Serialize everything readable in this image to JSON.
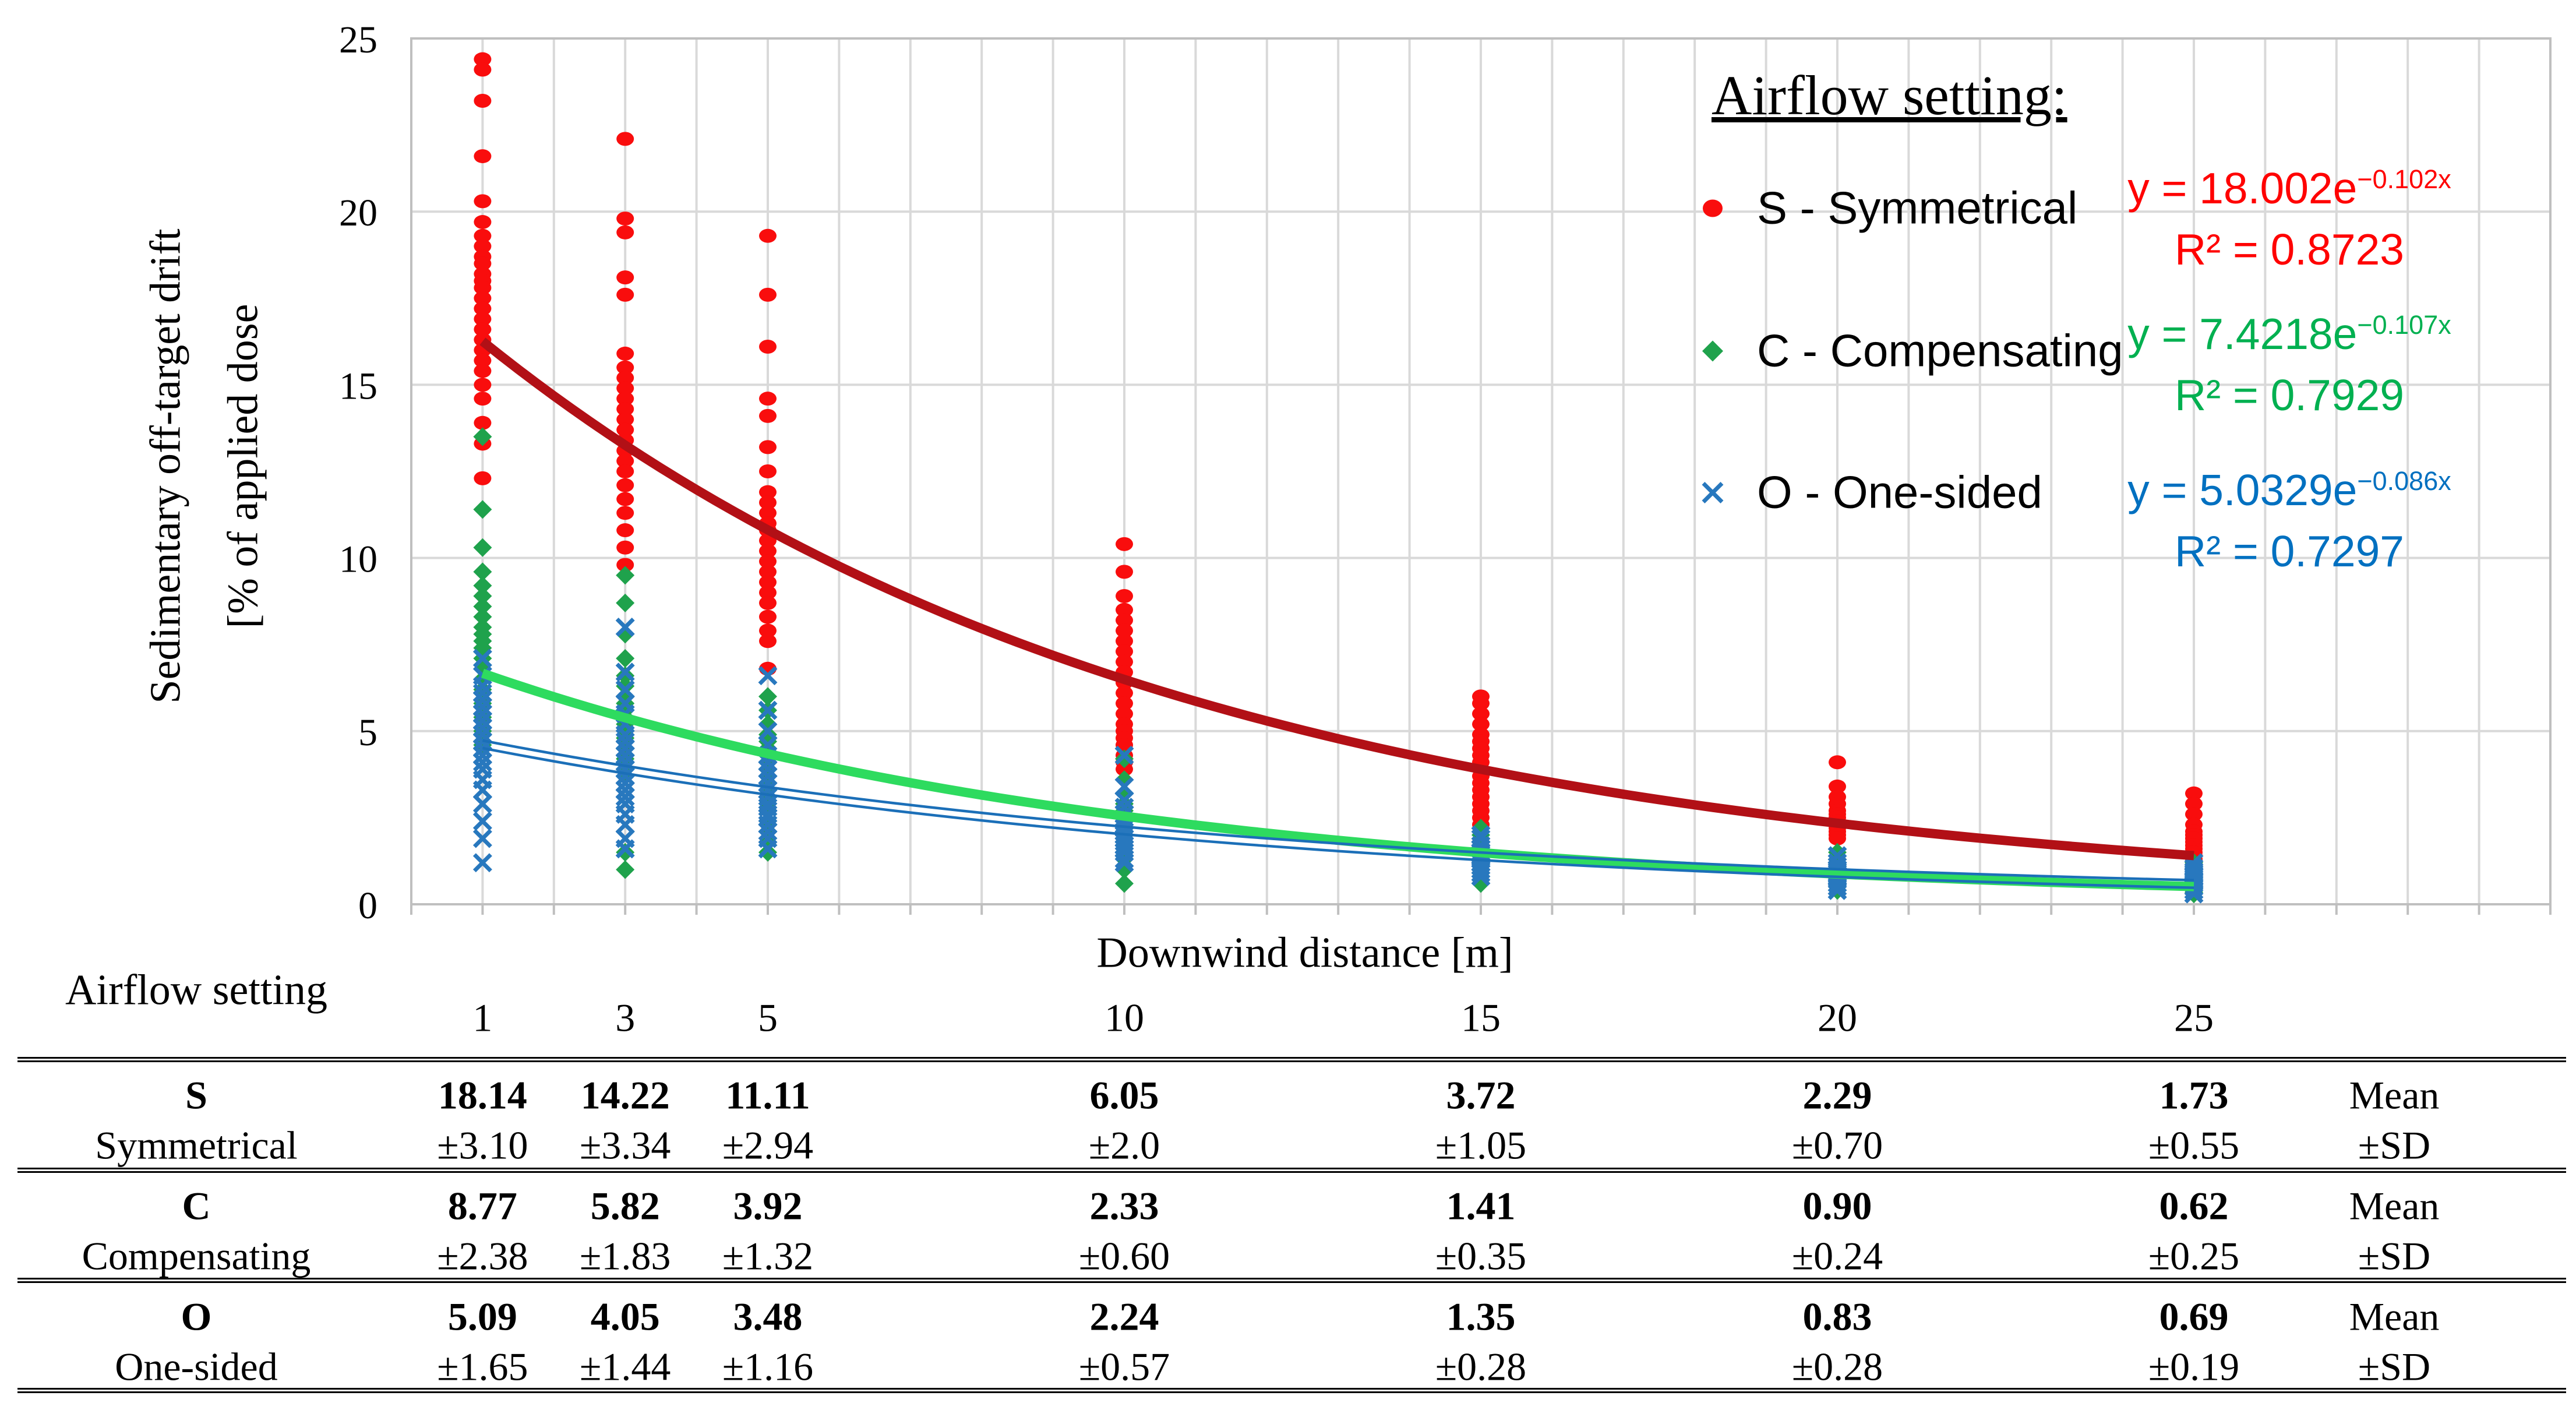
{
  "figure": {
    "y_axis": {
      "title_line1": "Sedimentary off-target drift",
      "title_line2": "[% of applied dose",
      "tick_labels": [
        "0",
        "5",
        "10",
        "15",
        "20",
        "25"
      ]
    },
    "x_axis": {
      "title": "Downwind distance  [m]"
    },
    "legend": {
      "title": "Airflow setting:",
      "items": [
        {
          "label": "S - Symmetrical",
          "marker": "circle",
          "marker_color": "#F90D0D",
          "eq_base": "y = 18.002e",
          "eq_exp": "−0.102x",
          "r2": "R² = 0.8723",
          "text_color": "#FF0000"
        },
        {
          "label": "C - Compensating",
          "marker": "diamond",
          "marker_color": "#1FA24C",
          "eq_base": "y = 7.4218e",
          "eq_exp": "−0.107x",
          "r2": "R² = 0.7929",
          "text_color": "#00B050"
        },
        {
          "label": "O - One-sided",
          "marker": "cross",
          "marker_color": "#2878BE",
          "eq_base": "y = 5.0329e",
          "eq_exp": "−0.086x",
          "r2": "R² = 0.7297",
          "text_color": "#0070C0"
        }
      ]
    }
  },
  "chart_data": {
    "type": "scatter",
    "title": "",
    "xlabel": "Downwind distance [m]",
    "ylabel": "Sedimentary off-target drift [% of applied dose",
    "xlim": [
      0,
      30
    ],
    "ylim": [
      0,
      25
    ],
    "yticks": [
      0,
      5,
      10,
      15,
      20,
      25
    ],
    "grid": {
      "vertical_every": 1,
      "horizontal_every": 5,
      "color": "#D9D9D9",
      "border_color": "#BFBFBF"
    },
    "legend_position": "top-right",
    "distances": [
      1,
      3,
      5,
      10,
      15,
      20,
      25
    ],
    "note": "point values estimated from pixel positions",
    "series": [
      {
        "name": "S - Symmetrical",
        "marker": "circle",
        "color": "#F90D0D",
        "trend": {
          "a": 18.002,
          "k": 0.102,
          "color": "#B21016",
          "style": "thick",
          "equation": "y = 18.002e−0.102x",
          "r2": 0.8723
        },
        "values": [
          [
            24.4,
            24.1,
            23.2,
            21.6,
            20.3,
            19.7,
            19.3,
            19.0,
            18.7,
            18.5,
            18.2,
            18.0,
            17.8,
            17.5,
            17.2,
            16.9,
            16.6,
            16.3,
            16.0,
            15.7,
            15.4,
            15.0,
            14.6,
            13.9,
            13.3,
            12.3
          ],
          [
            22.1,
            19.8,
            19.4,
            18.1,
            17.6,
            15.9,
            15.5,
            15.2,
            14.9,
            14.6,
            14.3,
            14.0,
            13.7,
            13.4,
            13.1,
            12.8,
            12.5,
            12.1,
            11.7,
            11.3,
            10.8,
            10.3,
            9.8
          ],
          [
            19.3,
            17.6,
            16.1,
            14.6,
            14.1,
            13.2,
            12.5,
            11.9,
            11.6,
            11.3,
            11.0,
            10.8,
            10.5,
            10.2,
            9.9,
            9.6,
            9.3,
            9.0,
            8.7,
            8.3,
            7.9,
            7.6,
            6.8
          ],
          [
            10.4,
            9.6,
            8.9,
            8.5,
            8.2,
            7.9,
            7.6,
            7.3,
            7.0,
            6.7,
            6.4,
            6.1,
            5.8,
            5.5,
            5.2,
            5.0,
            4.8,
            4.6,
            4.3,
            4.1,
            3.9
          ],
          [
            6.0,
            5.8,
            5.5,
            5.2,
            4.9,
            4.7,
            4.5,
            4.3,
            4.1,
            3.9,
            3.7,
            3.5,
            3.3,
            3.1,
            2.9,
            2.7,
            2.5,
            2.3
          ],
          [
            4.1,
            3.4,
            3.1,
            2.9,
            2.7,
            2.6,
            2.5,
            2.4,
            2.3,
            2.2,
            2.1,
            2.0,
            1.9
          ],
          [
            3.2,
            2.9,
            2.6,
            2.3,
            2.1,
            2.0,
            1.9,
            1.8,
            1.7,
            1.6,
            1.5,
            1.4,
            1.3,
            1.2,
            1.1
          ]
        ],
        "mean": [
          18.14,
          14.22,
          11.11,
          6.05,
          3.72,
          2.29,
          1.73
        ],
        "sd": [
          3.1,
          3.34,
          2.94,
          2.0,
          1.05,
          0.7,
          0.55
        ]
      },
      {
        "name": "C - Compensating",
        "marker": "diamond",
        "color": "#1FA24C",
        "trend": {
          "a": 7.4218,
          "k": 0.107,
          "color": "#2EDB5F",
          "style": "thick",
          "equation": "y = 7.4218e−0.107x",
          "r2": 0.7929
        },
        "values": [
          [
            13.5,
            11.4,
            10.3,
            9.6,
            9.2,
            8.9,
            8.6,
            8.3,
            8.0,
            7.8,
            7.6,
            7.4,
            7.1,
            6.8,
            6.5,
            6.2,
            5.8,
            5.4,
            5.0,
            4.6
          ],
          [
            9.5,
            8.7,
            7.8,
            7.1,
            6.6,
            6.3,
            6.0,
            5.8,
            5.6,
            5.4,
            5.2,
            5.0,
            4.8,
            4.5,
            4.2,
            3.9,
            3.7,
            1.5,
            1.0
          ],
          [
            6.0,
            5.6,
            5.2,
            4.9,
            4.7,
            4.5,
            4.3,
            4.1,
            3.9,
            3.7,
            3.5,
            3.3,
            3.1,
            2.9,
            2.7,
            2.4,
            2.1,
            1.8,
            1.5
          ],
          [
            4.2,
            3.6,
            3.2,
            2.9,
            2.7,
            2.5,
            2.4,
            2.3,
            2.2,
            2.1,
            2.0,
            1.9,
            1.8,
            1.7,
            1.5,
            1.3,
            1.0,
            0.6
          ],
          [
            2.2,
            2.0,
            1.9,
            1.8,
            1.7,
            1.6,
            1.5,
            1.4,
            1.3,
            1.2,
            1.1,
            1.0,
            0.9,
            0.8,
            0.7,
            0.6
          ],
          [
            1.5,
            1.3,
            1.2,
            1.1,
            1.0,
            0.95,
            0.9,
            0.85,
            0.8,
            0.75,
            0.7,
            0.6,
            0.5,
            0.4
          ],
          [
            1.2,
            1.0,
            0.9,
            0.8,
            0.75,
            0.7,
            0.65,
            0.6,
            0.55,
            0.5,
            0.45,
            0.4,
            0.35,
            0.3
          ]
        ],
        "mean": [
          8.77,
          5.82,
          3.92,
          2.33,
          1.41,
          0.9,
          0.62
        ],
        "sd": [
          2.38,
          1.83,
          1.32,
          0.6,
          0.35,
          0.24,
          0.25
        ]
      },
      {
        "name": "O - One-sided",
        "marker": "cross",
        "color": "#2878BE",
        "trend": {
          "a": 5.0329,
          "k": 0.086,
          "color": "#1B6FB8",
          "style": "thin-double",
          "equation": "y = 5.0329e−0.086x",
          "r2": 0.7297
        },
        "values": [
          [
            7.1,
            6.6,
            6.3,
            6.1,
            5.9,
            5.7,
            5.5,
            5.3,
            5.1,
            4.9,
            4.7,
            4.5,
            4.3,
            4.1,
            3.9,
            3.6,
            3.3,
            2.9,
            2.4,
            1.9,
            1.2
          ],
          [
            8.0,
            6.7,
            6.2,
            5.8,
            5.5,
            5.2,
            4.9,
            4.7,
            4.5,
            4.3,
            4.1,
            3.9,
            3.7,
            3.5,
            3.3,
            3.1,
            2.9,
            2.6,
            2.3,
            1.9,
            1.6
          ],
          [
            6.6,
            5.6,
            5.0,
            4.6,
            4.3,
            4.1,
            3.9,
            3.7,
            3.5,
            3.3,
            3.1,
            2.9,
            2.8,
            2.6,
            2.5,
            2.3,
            2.1,
            1.9,
            1.6
          ],
          [
            4.3,
            3.4,
            3.0,
            2.8,
            2.6,
            2.4,
            2.3,
            2.2,
            2.1,
            2.0,
            1.9,
            1.8,
            1.7,
            1.6,
            1.5,
            1.3,
            1.2
          ],
          [
            2.0,
            1.9,
            1.7,
            1.6,
            1.5,
            1.45,
            1.4,
            1.35,
            1.3,
            1.2,
            1.1,
            1.0,
            0.9,
            0.8
          ],
          [
            1.4,
            1.2,
            1.1,
            1.0,
            0.95,
            0.9,
            0.85,
            0.8,
            0.75,
            0.7,
            0.6,
            0.5,
            0.4
          ],
          [
            1.2,
            1.05,
            0.95,
            0.9,
            0.85,
            0.8,
            0.75,
            0.7,
            0.65,
            0.6,
            0.5,
            0.4,
            0.3
          ]
        ],
        "mean": [
          5.09,
          4.05,
          3.48,
          2.24,
          1.35,
          0.83,
          0.69
        ],
        "sd": [
          1.65,
          1.44,
          1.16,
          0.57,
          0.28,
          0.28,
          0.19
        ]
      }
    ]
  },
  "table": {
    "row_header_title": "Airflow setting",
    "columns": [
      "1",
      "3",
      "5",
      "10",
      "15",
      "20",
      "25"
    ],
    "rows": [
      {
        "code": "S",
        "name": "Symmetrical",
        "means": [
          "18.14",
          "14.22",
          "11.11",
          "6.05",
          "3.72",
          "2.29",
          "1.73"
        ],
        "sds": [
          "±3.10",
          "±3.34",
          "±2.94",
          "±2.0",
          "±1.05",
          "±0.70",
          "±0.55"
        ],
        "right_top": "Mean",
        "right_bottom": "±SD"
      },
      {
        "code": "C",
        "name": "Compensating",
        "means": [
          "8.77",
          "5.82",
          "3.92",
          "2.33",
          "1.41",
          "0.90",
          "0.62"
        ],
        "sds": [
          "±2.38",
          "±1.83",
          "±1.32",
          "±0.60",
          "±0.35",
          "±0.24",
          "±0.25"
        ],
        "right_top": "Mean",
        "right_bottom": "±SD"
      },
      {
        "code": "O",
        "name": "One-sided",
        "means": [
          "5.09",
          "4.05",
          "3.48",
          "2.24",
          "1.35",
          "0.83",
          "0.69"
        ],
        "sds": [
          "±1.65",
          "±1.44",
          "±1.16",
          "±0.57",
          "±0.28",
          "±0.28",
          "±0.19"
        ],
        "right_top": "Mean",
        "right_bottom": "±SD"
      }
    ]
  }
}
